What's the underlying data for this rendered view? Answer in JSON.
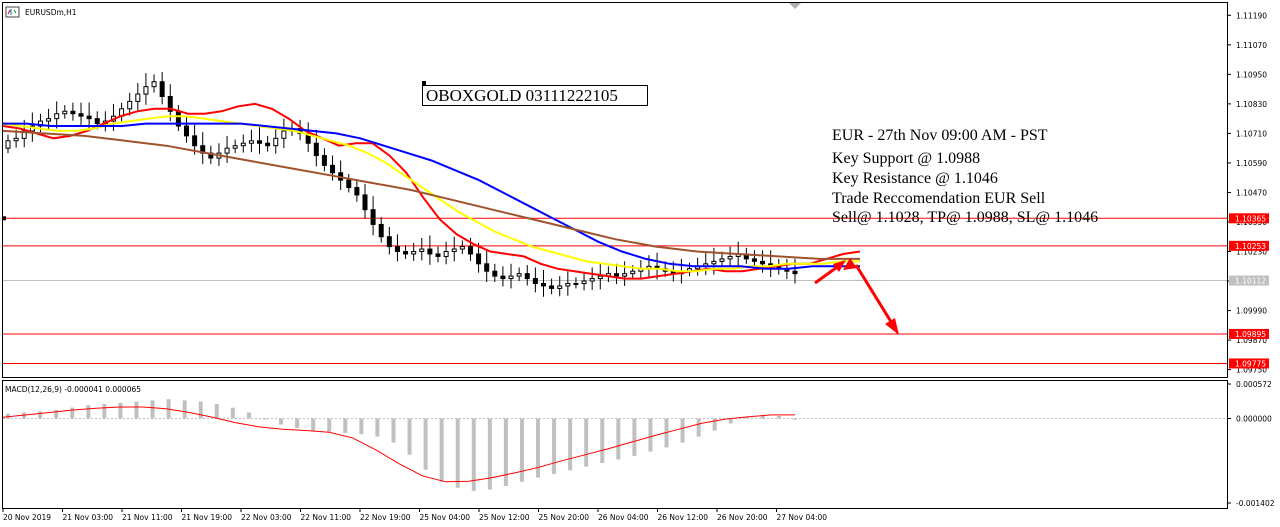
{
  "window": {
    "title": "EURUSDm,H1"
  },
  "watermark": "OBOXGOLD 03111222105",
  "annotation": {
    "lines": [
      "EUR - 27th Nov 09:00 AM - PST",
      "Key Support @ 1.0988",
      "Key Resistance @ 1.1046",
      "Trade Reccomendation EUR Sell",
      "Sell@ 1.1028, TP@ 1.0988, SL@ 1.1046"
    ]
  },
  "chart_data": [
    {
      "type": "candlestick",
      "symbol": "EURUSDm",
      "timeframe": "H1",
      "ylim": [
        1.0972,
        1.1124
      ],
      "y_ticks": [
        "1.11190",
        "1.11070",
        "1.10950",
        "1.10830",
        "1.10710",
        "1.10590",
        "1.10470",
        "1.10350",
        "1.10230",
        "1.10110",
        "1.09990",
        "1.09870",
        "1.09750"
      ],
      "x_ticks": [
        "20 Nov 2019",
        "21 Nov 03:00",
        "21 Nov 11:00",
        "21 Nov 19:00",
        "22 Nov 03:00",
        "22 Nov 11:00",
        "22 Nov 19:00",
        "25 Nov 04:00",
        "25 Nov 12:00",
        "25 Nov 20:00",
        "26 Nov 04:00",
        "26 Nov 12:00",
        "26 Nov 20:00",
        "27 Nov 04:00"
      ],
      "current_price": "1.10112",
      "levels": [
        {
          "label": "1.10365",
          "value": 1.10365,
          "color": "#ff0000"
        },
        {
          "label": "1.10253",
          "value": 1.10253,
          "color": "#ff0000"
        },
        {
          "label": "1.09895",
          "value": 1.09895,
          "color": "#ff0000"
        },
        {
          "label": "1.09775",
          "value": 1.09775,
          "color": "#ff0000"
        }
      ],
      "closes": [
        1.1068,
        1.1069,
        1.1072,
        1.1074,
        1.1076,
        1.1077,
        1.1079,
        1.108,
        1.1079,
        1.1078,
        1.1077,
        1.1075,
        1.1076,
        1.1078,
        1.1081,
        1.1084,
        1.1087,
        1.109,
        1.1092,
        1.1086,
        1.108,
        1.1074,
        1.107,
        1.1066,
        1.1063,
        1.1061,
        1.1063,
        1.1065,
        1.1066,
        1.1067,
        1.1068,
        1.1067,
        1.1066,
        1.1069,
        1.1072,
        1.1073,
        1.1071,
        1.1067,
        1.1062,
        1.1058,
        1.1055,
        1.1052,
        1.1049,
        1.1046,
        1.104,
        1.1034,
        1.1029,
        1.1025,
        1.1023,
        1.1022,
        1.1023,
        1.1024,
        1.1022,
        1.1021,
        1.1023,
        1.1024,
        1.1025,
        1.1022,
        1.1018,
        1.1015,
        1.1013,
        1.1012,
        1.1013,
        1.1014,
        1.1012,
        1.101,
        1.1009,
        1.1008,
        1.1009,
        1.101,
        1.101,
        1.1011,
        1.1012,
        1.1013,
        1.1014,
        1.1013,
        1.1014,
        1.1015,
        1.1016,
        1.1017,
        1.1016,
        1.1015,
        1.1014,
        1.1015,
        1.1016,
        1.1017,
        1.1018,
        1.1019,
        1.102,
        1.1021,
        1.1022,
        1.102,
        1.1019,
        1.1018,
        1.1017,
        1.1016,
        1.1015,
        1.1014
      ],
      "moving_averages": [
        {
          "color": "#ff0000",
          "values": [
            1.1074,
            1.1073,
            1.1071,
            1.1069,
            1.107,
            1.1072,
            1.1075,
            1.1078,
            1.108,
            1.1081,
            1.1081,
            1.1079,
            1.1079,
            1.108,
            1.1082,
            1.1083,
            1.1081,
            1.1077,
            1.1072,
            1.1069,
            1.1066,
            1.1067,
            1.1067,
            1.1062,
            1.1055,
            1.1045,
            1.1036,
            1.103,
            1.1026,
            1.1023,
            1.1022,
            1.1021,
            1.1018,
            1.1016,
            1.1015,
            1.1014,
            1.1013,
            1.1012,
            1.1012,
            1.1013,
            1.1014,
            1.1015,
            1.1016,
            1.1015,
            1.1015,
            1.1016,
            1.1017,
            1.1018,
            1.1018,
            1.102,
            1.1022,
            1.1023
          ]
        },
        {
          "color": "#ffff00",
          "values": [
            1.1075,
            1.1074,
            1.1073,
            1.1072,
            1.1072,
            1.1073,
            1.1075,
            1.1076,
            1.1077,
            1.1078,
            1.1078,
            1.1077,
            1.1076,
            1.1075,
            1.1074,
            1.1073,
            1.1072,
            1.107,
            1.1068,
            1.1066,
            1.1063,
            1.1059,
            1.1054,
            1.1049,
            1.1044,
            1.1039,
            1.1035,
            1.1031,
            1.1028,
            1.1025,
            1.1023,
            1.1021,
            1.1019,
            1.1018,
            1.1017,
            1.1016,
            1.1016,
            1.1015,
            1.1015,
            1.1016,
            1.1016,
            1.1017,
            1.1017,
            1.1018,
            1.1018,
            1.1018,
            1.1019,
            1.1019
          ]
        },
        {
          "color": "#0000ff",
          "values": [
            1.1075,
            1.1075,
            1.1074,
            1.1074,
            1.1074,
            1.1074,
            1.1075,
            1.1075,
            1.1075,
            1.1075,
            1.1075,
            1.1074,
            1.1073,
            1.1072,
            1.1071,
            1.1069,
            1.1066,
            1.1063,
            1.106,
            1.1056,
            1.1052,
            1.1047,
            1.1042,
            1.1037,
            1.1032,
            1.1027,
            1.1023,
            1.102,
            1.1018,
            1.1017,
            1.1017,
            1.1017,
            1.1016,
            1.1016,
            1.1017,
            1.1017,
            1.1017
          ]
        },
        {
          "color": "#a0522d",
          "values": [
            1.1072,
            1.1071,
            1.107,
            1.1068,
            1.1066,
            1.1063,
            1.106,
            1.1057,
            1.1054,
            1.1051,
            1.1048,
            1.1044,
            1.104,
            1.1036,
            1.1032,
            1.1028,
            1.1025,
            1.1023,
            1.1022,
            1.1021,
            1.102,
            1.102
          ]
        }
      ]
    },
    {
      "type": "bar",
      "indicator": "MACD(12,26,9)",
      "title": "MACD(12,26,9) -0.000041 0.000065",
      "ylim": [
        -0.001402,
        0.000572
      ],
      "y_ticks": [
        "0.000572",
        "0.000000",
        "-0.001402"
      ],
      "histogram": [
        8e-05,
        0.0001,
        0.00012,
        0.00014,
        0.00018,
        0.00022,
        0.00024,
        0.00026,
        0.00028,
        0.0003,
        0.00032,
        0.0003,
        0.00028,
        0.00024,
        0.00018,
        0.0001,
        0.0,
        -0.0001,
        -0.00016,
        -0.0002,
        -0.00022,
        -0.00024,
        -0.00026,
        -0.0003,
        -0.0004,
        -0.0006,
        -0.00085,
        -0.00105,
        -0.00115,
        -0.0012,
        -0.00118,
        -0.00112,
        -0.00105,
        -0.00098,
        -0.00092,
        -0.00086,
        -0.0008,
        -0.00074,
        -0.00068,
        -0.00062,
        -0.00055,
        -0.00048,
        -0.0004,
        -0.0003,
        -0.0002,
        -8e-05,
        2e-05,
        6e-05,
        4e-05,
        -2e-05
      ],
      "signal": [
        2e-05,
        6e-05,
        0.0001,
        0.00014,
        0.00017,
        0.00019,
        0.00019,
        0.00016,
        0.0001,
        2e-05,
        -7e-05,
        -0.00014,
        -0.00018,
        -0.0002,
        -0.00023,
        -0.00032,
        -0.00052,
        -0.00075,
        -0.00095,
        -0.00105,
        -0.00104,
        -0.00098,
        -0.0009,
        -0.00081,
        -0.0007,
        -0.0006,
        -0.0005,
        -0.00039,
        -0.00028,
        -0.00018,
        -8e-05,
        -1e-05,
        3e-05,
        6e-05,
        6e-05
      ]
    }
  ],
  "colors": {
    "candle": "#000000",
    "grid_line": "#c0c0c0",
    "axis": "#000000",
    "level": "#ff0000",
    "signal_arrow": "#ff0000",
    "macd_hist": "#c0c0c0",
    "macd_signal": "#ff0000"
  }
}
